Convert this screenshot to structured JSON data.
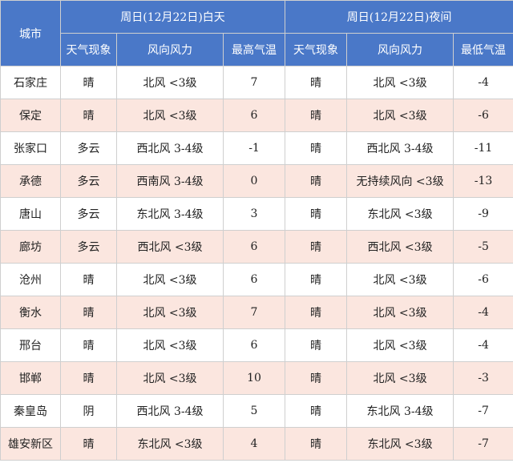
{
  "header": {
    "city": "城市",
    "day_title": "周日(12月22日)白天",
    "night_title": "周日(12月22日)夜间",
    "weather": "天气现象",
    "wind": "风向风力",
    "high": "最高气温",
    "low": "最低气温"
  },
  "rows": [
    {
      "city": "石家庄",
      "day_weather": "晴",
      "day_wind": "北风 <3级",
      "high": "7",
      "night_weather": "晴",
      "night_wind": "北风 <3级",
      "low": "-4"
    },
    {
      "city": "保定",
      "day_weather": "晴",
      "day_wind": "北风 <3级",
      "high": "6",
      "night_weather": "晴",
      "night_wind": "北风 <3级",
      "low": "-6"
    },
    {
      "city": "张家口",
      "day_weather": "多云",
      "day_wind": "西北风 3-4级",
      "high": "-1",
      "night_weather": "晴",
      "night_wind": "西北风 3-4级",
      "low": "-11"
    },
    {
      "city": "承德",
      "day_weather": "多云",
      "day_wind": "西南风 3-4级",
      "high": "0",
      "night_weather": "晴",
      "night_wind": "无持续风向 <3级",
      "low": "-13"
    },
    {
      "city": "唐山",
      "day_weather": "多云",
      "day_wind": "东北风 3-4级",
      "high": "3",
      "night_weather": "晴",
      "night_wind": "东北风 <3级",
      "low": "-9"
    },
    {
      "city": "廊坊",
      "day_weather": "多云",
      "day_wind": "西北风 <3级",
      "high": "6",
      "night_weather": "晴",
      "night_wind": "西北风 <3级",
      "low": "-5"
    },
    {
      "city": "沧州",
      "day_weather": "晴",
      "day_wind": "北风 <3级",
      "high": "6",
      "night_weather": "晴",
      "night_wind": "北风 <3级",
      "low": "-6"
    },
    {
      "city": "衡水",
      "day_weather": "晴",
      "day_wind": "北风 <3级",
      "high": "7",
      "night_weather": "晴",
      "night_wind": "北风 <3级",
      "low": "-4"
    },
    {
      "city": "邢台",
      "day_weather": "晴",
      "day_wind": "北风 <3级",
      "high": "6",
      "night_weather": "晴",
      "night_wind": "北风 <3级",
      "low": "-4"
    },
    {
      "city": "邯郸",
      "day_weather": "晴",
      "day_wind": "北风 <3级",
      "high": "10",
      "night_weather": "晴",
      "night_wind": "北风 <3级",
      "low": "-3"
    },
    {
      "city": "秦皇岛",
      "day_weather": "阴",
      "day_wind": "西北风 3-4级",
      "high": "5",
      "night_weather": "晴",
      "night_wind": "东北风 3-4级",
      "low": "-7"
    },
    {
      "city": "雄安新区",
      "day_weather": "晴",
      "day_wind": "东北风 <3级",
      "high": "4",
      "night_weather": "晴",
      "night_wind": "东北风 <3级",
      "low": "-7"
    }
  ]
}
